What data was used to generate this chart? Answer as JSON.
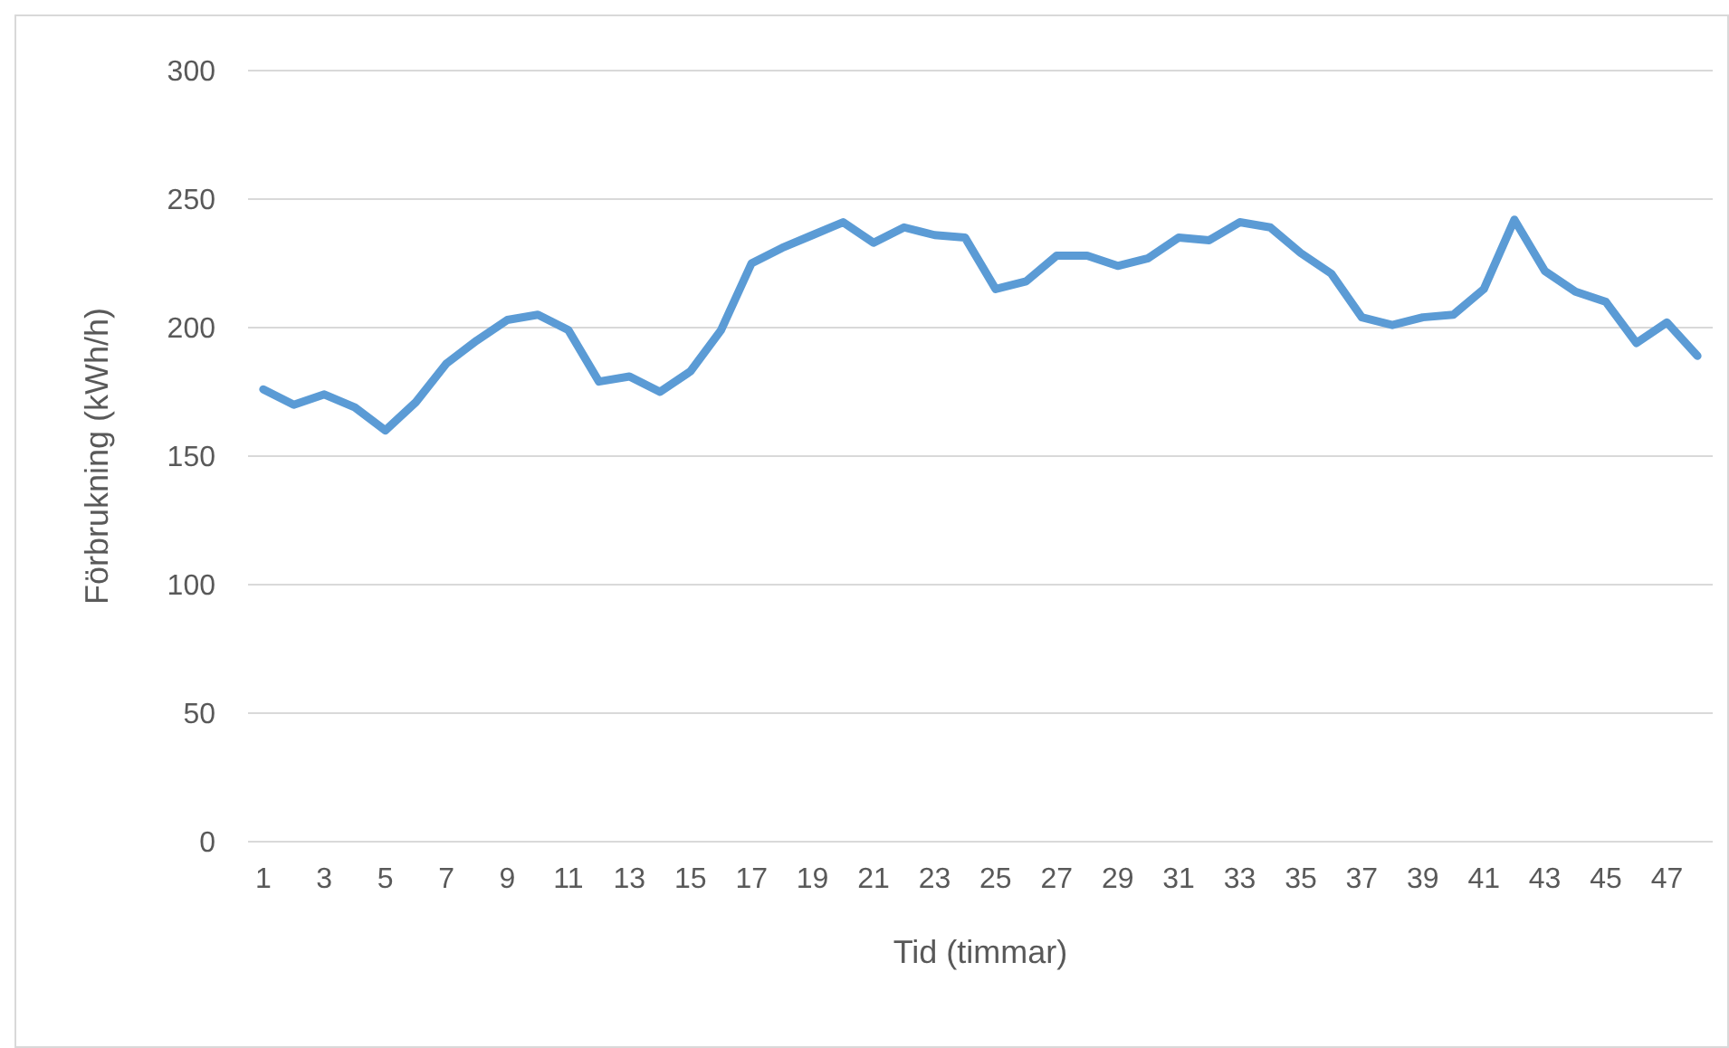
{
  "chart_data": {
    "type": "line",
    "xlabel": "Tid (timmar)",
    "ylabel": "Förbrukning (kWh/h)",
    "x": [
      1,
      2,
      3,
      4,
      5,
      6,
      7,
      8,
      9,
      10,
      11,
      12,
      13,
      14,
      15,
      16,
      17,
      18,
      19,
      20,
      21,
      22,
      23,
      24,
      25,
      26,
      27,
      28,
      29,
      30,
      31,
      32,
      33,
      34,
      35,
      36,
      37,
      38,
      39,
      40,
      41,
      42,
      43,
      44,
      45,
      46,
      47,
      48
    ],
    "series": [
      {
        "color": "#5b9bd5",
        "values": [
          176,
          170,
          174,
          169,
          160,
          171,
          186,
          195,
          203,
          205,
          199,
          179,
          181,
          175,
          183,
          199,
          225,
          231,
          236,
          241,
          233,
          239,
          236,
          235,
          215,
          218,
          228,
          228,
          224,
          227,
          235,
          234,
          241,
          239,
          229,
          221,
          204,
          201,
          204,
          205,
          215,
          242,
          222,
          214,
          210,
          194,
          202,
          189
        ]
      }
    ],
    "xlim": [
      0.5,
      48.5
    ],
    "xticks": [
      1,
      3,
      5,
      7,
      9,
      11,
      13,
      15,
      17,
      19,
      21,
      23,
      25,
      27,
      29,
      31,
      33,
      35,
      37,
      39,
      41,
      43,
      45,
      47
    ],
    "ylim": [
      0,
      300
    ],
    "yticks": [
      0,
      50,
      100,
      150,
      200,
      250,
      300
    ],
    "grid": "y",
    "legend": false,
    "marker": "none",
    "line_style": "solid"
  }
}
